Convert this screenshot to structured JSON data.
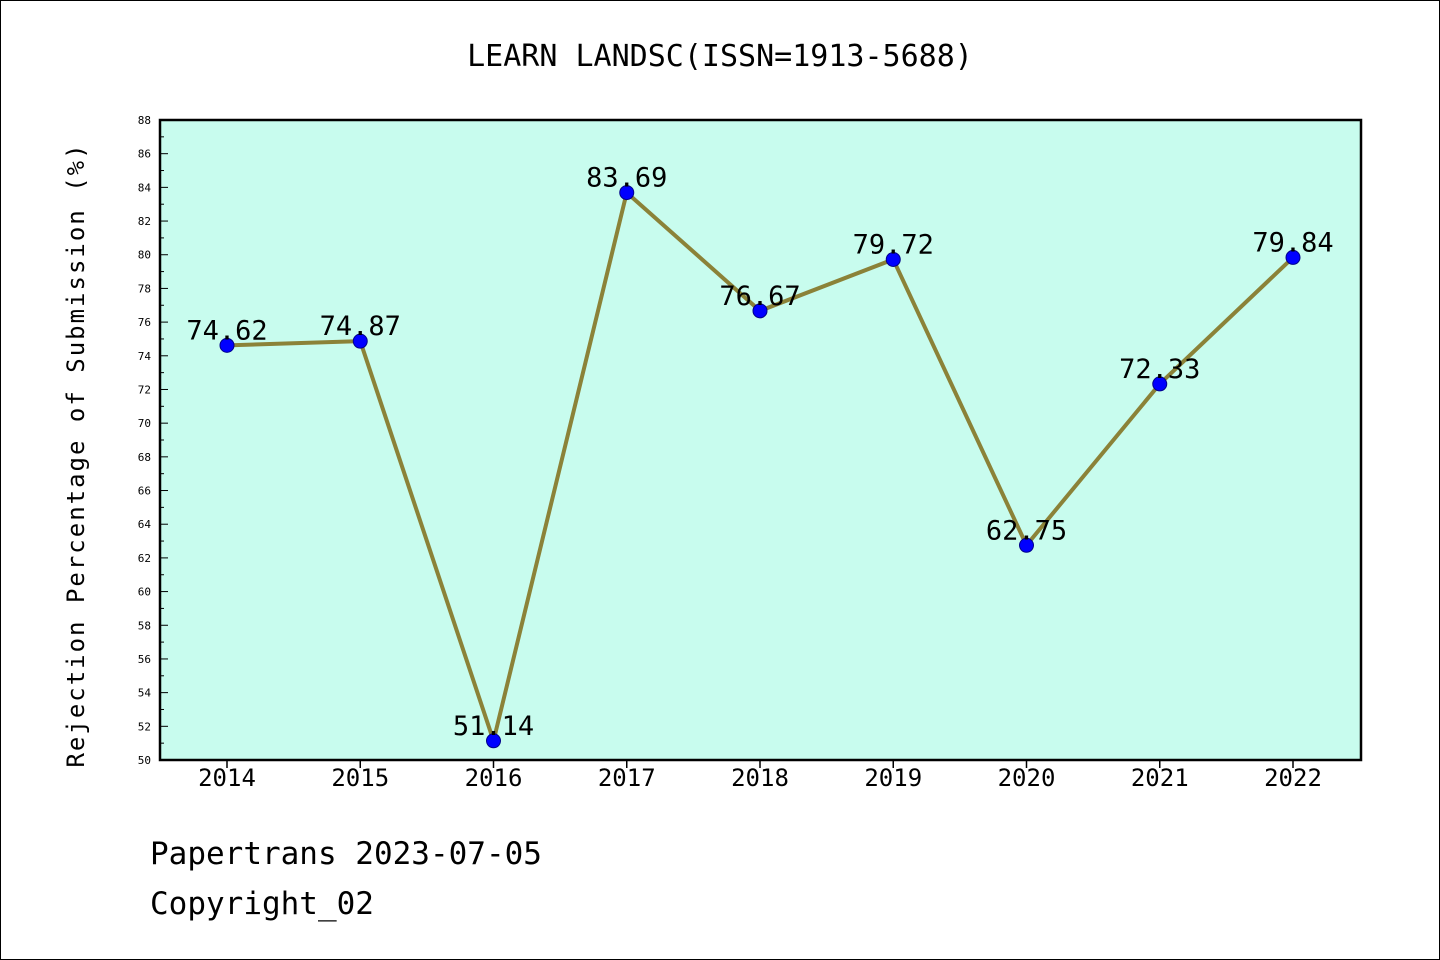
{
  "chart_data": {
    "type": "line",
    "title": "LEARN LANDSC(ISSN=1913-5688)",
    "xlabel": "",
    "ylabel": "Rejection Percentage of Submission (%)",
    "categories": [
      "2014",
      "2015",
      "2016",
      "2017",
      "2018",
      "2019",
      "2020",
      "2021",
      "2022"
    ],
    "series": [
      {
        "values": [
          74.62,
          74.87,
          51.14,
          83.69,
          76.67,
          79.72,
          62.75,
          72.33,
          79.84
        ],
        "labels": [
          "74.62",
          "74.87",
          "51.14",
          "83.69",
          "76.67",
          "79.72",
          "62.75",
          "72.33",
          "79.84"
        ]
      }
    ],
    "ylim": [
      50,
      88
    ],
    "yticks": [
      "50",
      "52",
      "54",
      "56",
      "58",
      "60",
      "62",
      "64",
      "66",
      "68",
      "70",
      "72",
      "74",
      "76",
      "78",
      "80",
      "82",
      "84",
      "86",
      "88"
    ],
    "grid": false,
    "legend": "none"
  },
  "footer": {
    "line1": "Papertrans 2023-07-05",
    "line2": "Copyright_02"
  },
  "colors": {
    "plot_background": "#c8fcee",
    "line": "#8b8238",
    "marker": "#0000ff",
    "marker_edge": "#00008b"
  }
}
